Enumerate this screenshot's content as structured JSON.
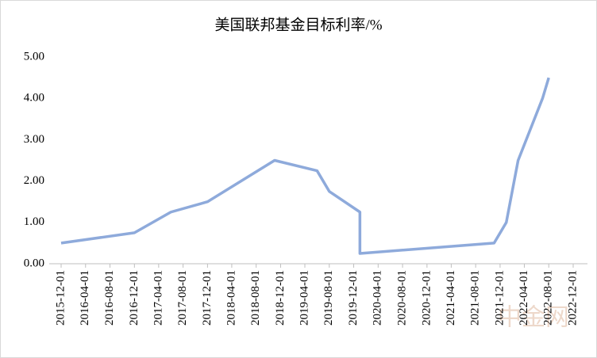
{
  "chart_data": {
    "type": "line",
    "title": "美国联邦基金目标利率/%",
    "x": [
      "2015-12-01",
      "2016-12-01",
      "2017-06-01",
      "2017-12-01",
      "2018-11-01",
      "2019-06-01",
      "2019-08-01",
      "2020-01-01",
      "2020-01-01",
      "2021-11-01",
      "2022-01-01",
      "2022-03-01",
      "2022-07-01",
      "2022-08-01"
    ],
    "series": [
      {
        "name": "美国联邦基金目标利率",
        "color": "#8eaadb",
        "values": [
          0.5,
          0.75,
          1.25,
          1.5,
          2.5,
          2.25,
          1.75,
          1.25,
          0.25,
          0.5,
          1.0,
          2.5,
          4.0,
          4.5
        ]
      }
    ],
    "xlim": [
      "2015-12-01",
      "2022-12-01"
    ],
    "xticks": [
      "2015-12-01",
      "2016-04-01",
      "2016-08-01",
      "2016-12-01",
      "2017-04-01",
      "2017-08-01",
      "2017-12-01",
      "2018-04-01",
      "2018-08-01",
      "2018-12-01",
      "2019-04-01",
      "2019-08-01",
      "2019-12-01",
      "2020-04-01",
      "2020-08-01",
      "2020-12-01",
      "2021-04-01",
      "2021-08-01",
      "2021-12-01",
      "2022-04-01",
      "2022-08-01",
      "2022-12-01"
    ],
    "ylim": [
      0,
      5
    ],
    "yticks": [
      {
        "value": 0,
        "label": "0.00"
      },
      {
        "value": 1,
        "label": "1.00"
      },
      {
        "value": 2,
        "label": "2.00"
      },
      {
        "value": 3,
        "label": "3.00"
      },
      {
        "value": 4,
        "label": "4.00"
      },
      {
        "value": 5,
        "label": "5.00"
      }
    ],
    "grid": false,
    "watermark": "中金网"
  }
}
